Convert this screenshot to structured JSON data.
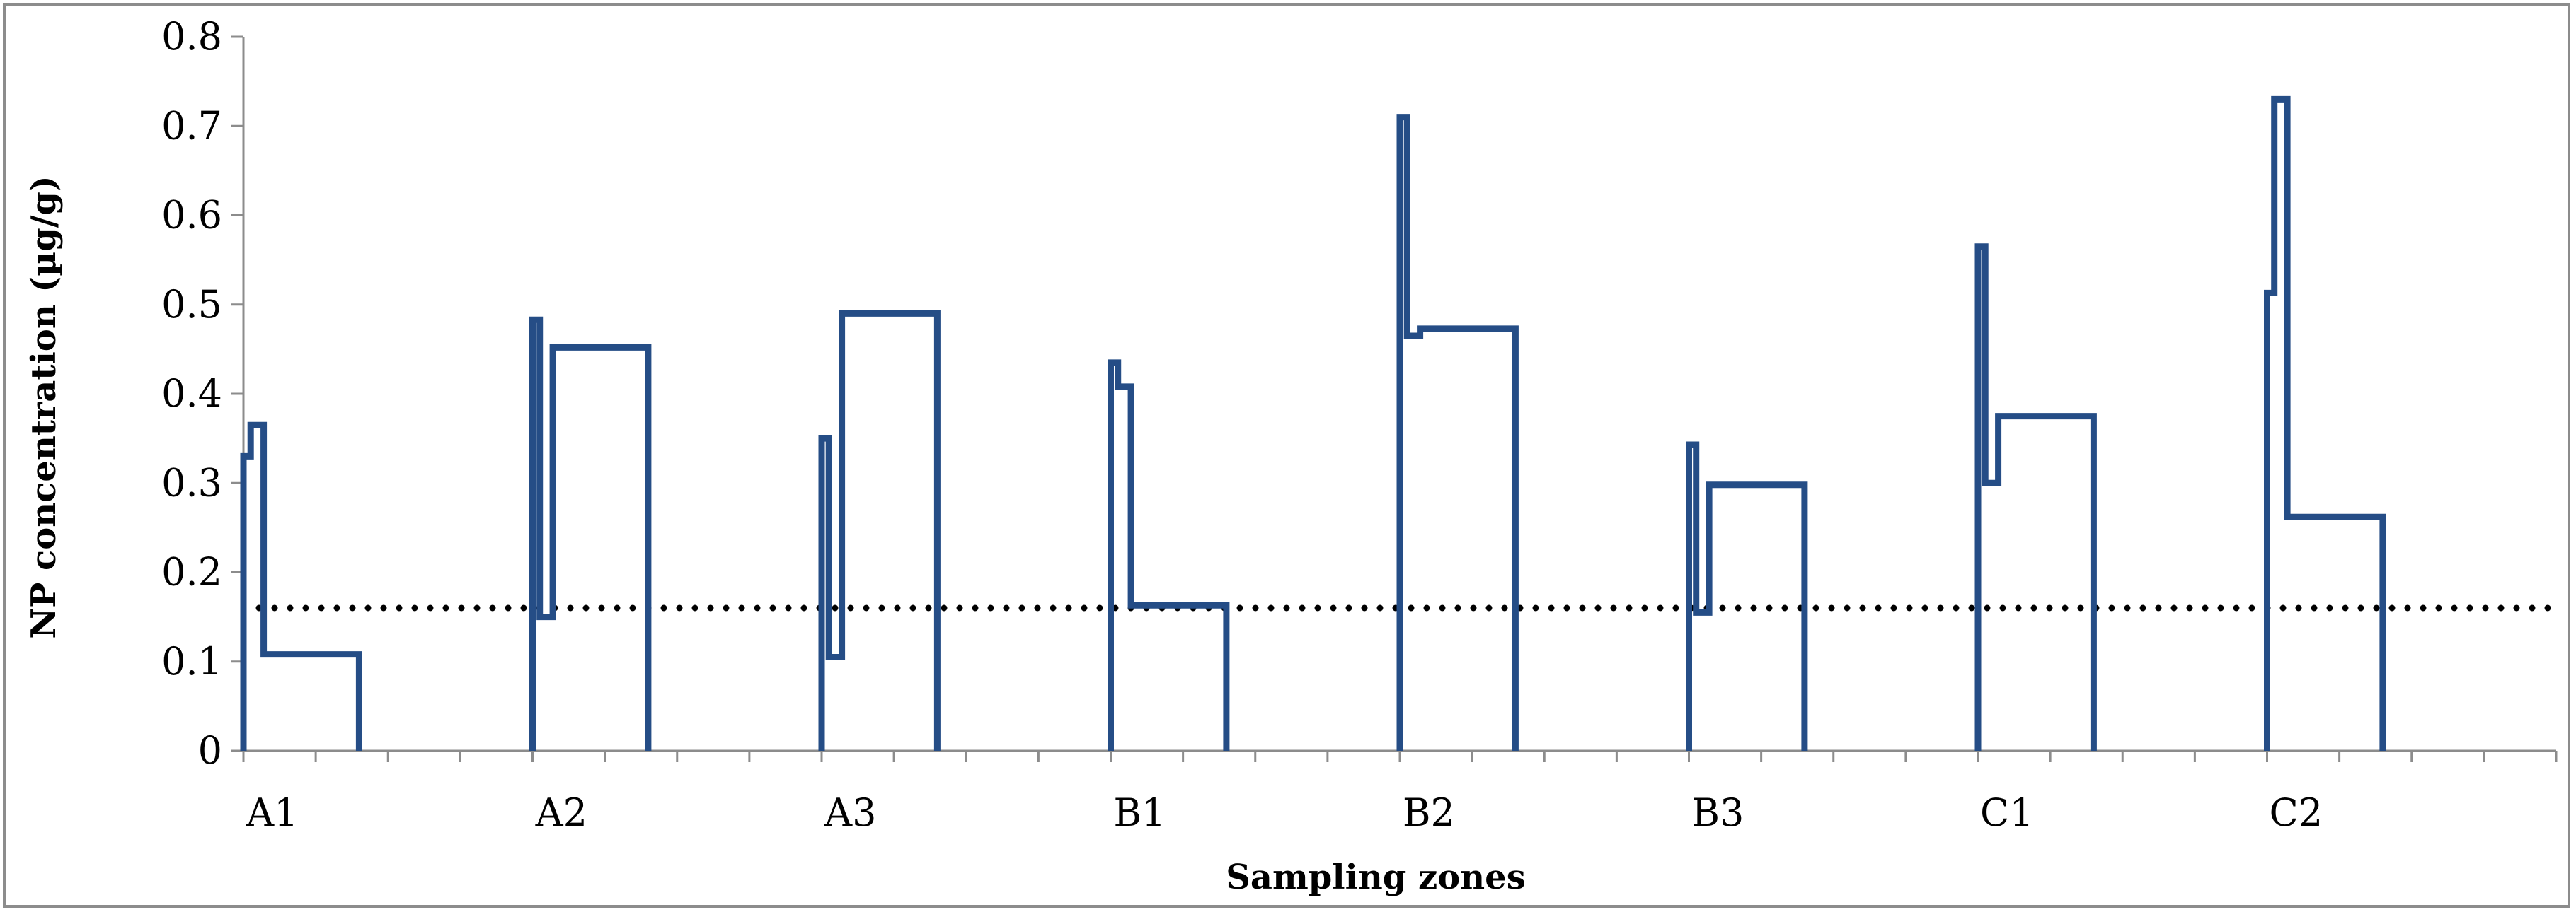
{
  "chart_data": {
    "type": "line",
    "title": "",
    "xlabel": "Sampling zones",
    "ylabel": "NP concentration (µg/g)",
    "ylim": [
      0,
      0.8
    ],
    "yticks": [
      "0",
      "0.1",
      "0.2",
      "0.3",
      "0.4",
      "0.5",
      "0.6",
      "0.7",
      "0.8"
    ],
    "categories": [
      "A1",
      "A2",
      "A3",
      "B1",
      "B2",
      "B3",
      "C1",
      "C2"
    ],
    "grid": false,
    "legend": "none",
    "series": [
      {
        "color": "#254d86",
        "style": "step",
        "zones": [
          {
            "zone": "A1",
            "values": [
              0.33,
              0.365,
              0.108
            ]
          },
          {
            "zone": "A2",
            "values": [
              0.483,
              0.15,
              0.452
            ]
          },
          {
            "zone": "A3",
            "values": [
              0.35,
              0.105,
              0.49
            ]
          },
          {
            "zone": "B1",
            "values": [
              0.435,
              0.408,
              0.163
            ]
          },
          {
            "zone": "B2",
            "values": [
              0.71,
              0.465,
              0.473
            ]
          },
          {
            "zone": "B3",
            "values": [
              0.343,
              0.155,
              0.298
            ]
          },
          {
            "zone": "C1",
            "values": [
              0.565,
              0.3,
              0.375
            ]
          },
          {
            "zone": "C2",
            "values": [
              0.513,
              0.73,
              0.262
            ]
          }
        ]
      }
    ],
    "reference_line": {
      "value": 0.16,
      "style": "dotted",
      "color": "#000000"
    }
  }
}
